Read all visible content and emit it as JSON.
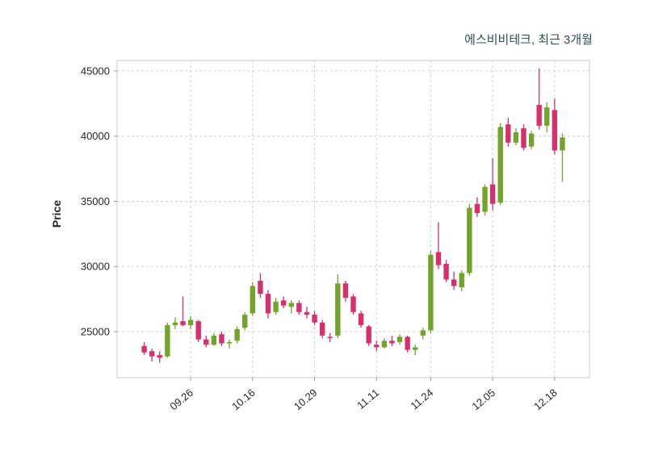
{
  "chart_data": {
    "type": "candlestick",
    "title": "에스비비테크, 최근 3개월",
    "ylabel": "Price",
    "y_ticks": [
      25000,
      30000,
      35000,
      40000,
      45000
    ],
    "ylim": [
      21470,
      45800
    ],
    "x_tick_labels": [
      "09.26",
      "10.16",
      "10.29",
      "11.11",
      "11.24",
      "12.05",
      "12.18"
    ],
    "x_tick_indices": [
      6,
      14,
      22,
      30,
      37,
      45,
      53
    ],
    "grid": "dashed",
    "legend": "none",
    "colors": {
      "up": "#74a32b",
      "down": "#d62f6d",
      "grid": "#cfcfcf",
      "axis_border": "#c9c9c9",
      "tick_text": "#262626",
      "title_text": "#2f4f4f"
    },
    "candles_format": [
      "open",
      "high",
      "low",
      "close"
    ],
    "candles": [
      [
        23900,
        24200,
        23200,
        23400
      ],
      [
        23500,
        23700,
        22700,
        23100
      ],
      [
        23200,
        23500,
        22600,
        23000
      ],
      [
        23100,
        25700,
        23000,
        25500
      ],
      [
        25500,
        26100,
        25200,
        25700
      ],
      [
        25800,
        27700,
        25400,
        25500
      ],
      [
        25500,
        26200,
        25200,
        25900
      ],
      [
        25800,
        25900,
        24200,
        24400
      ],
      [
        24400,
        24700,
        23800,
        24000
      ],
      [
        24000,
        24900,
        23900,
        24700
      ],
      [
        24800,
        25000,
        23900,
        24100
      ],
      [
        24100,
        24400,
        23700,
        24200
      ],
      [
        24300,
        25400,
        24100,
        25200
      ],
      [
        25300,
        26500,
        25100,
        26300
      ],
      [
        26400,
        28800,
        26200,
        28500
      ],
      [
        28900,
        29500,
        27600,
        27900
      ],
      [
        27900,
        28200,
        26000,
        26400
      ],
      [
        26500,
        27600,
        26300,
        27300
      ],
      [
        27400,
        27700,
        26800,
        27000
      ],
      [
        26900,
        27400,
        26400,
        27200
      ],
      [
        27200,
        27400,
        26300,
        26500
      ],
      [
        26500,
        26900,
        26000,
        26300
      ],
      [
        26300,
        26600,
        25500,
        25700
      ],
      [
        25700,
        25900,
        24500,
        24700
      ],
      [
        24600,
        24900,
        24200,
        24500
      ],
      [
        24700,
        29400,
        24500,
        28700
      ],
      [
        28700,
        28900,
        27300,
        27600
      ],
      [
        27700,
        27900,
        26300,
        26500
      ],
      [
        26400,
        26600,
        25300,
        25500
      ],
      [
        25400,
        25500,
        23900,
        24100
      ],
      [
        24000,
        24300,
        23500,
        23800
      ],
      [
        23800,
        24500,
        23700,
        24300
      ],
      [
        24300,
        24700,
        23900,
        24100
      ],
      [
        24200,
        24800,
        24000,
        24600
      ],
      [
        24600,
        24700,
        23400,
        23600
      ],
      [
        23600,
        24000,
        23200,
        23800
      ],
      [
        24700,
        25300,
        24400,
        25100
      ],
      [
        25100,
        31200,
        24900,
        30900
      ],
      [
        31100,
        33400,
        29800,
        30100
      ],
      [
        30200,
        30500,
        28800,
        29000
      ],
      [
        29000,
        29600,
        28200,
        28500
      ],
      [
        28400,
        29700,
        28100,
        29500
      ],
      [
        29500,
        34800,
        29300,
        34500
      ],
      [
        34800,
        35300,
        33800,
        34100
      ],
      [
        34200,
        36300,
        33900,
        36100
      ],
      [
        36300,
        38300,
        34300,
        34800
      ],
      [
        34900,
        41000,
        34700,
        40700
      ],
      [
        40900,
        41400,
        39200,
        39500
      ],
      [
        39500,
        40600,
        39300,
        40300
      ],
      [
        40600,
        40900,
        38900,
        39100
      ],
      [
        39200,
        40400,
        39000,
        40200
      ],
      [
        42400,
        45200,
        40500,
        40800
      ],
      [
        40800,
        42600,
        40300,
        42200
      ],
      [
        42000,
        42900,
        38600,
        38900
      ],
      [
        38900,
        40200,
        36500,
        39900
      ]
    ]
  }
}
